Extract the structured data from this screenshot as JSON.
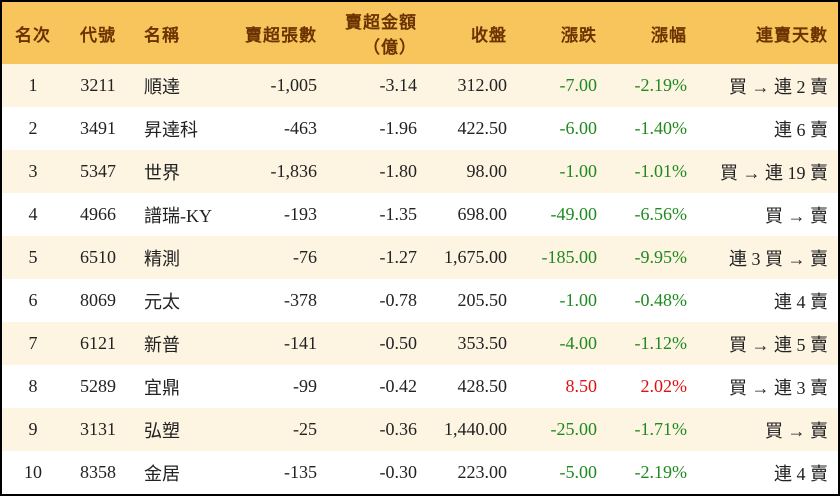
{
  "table": {
    "header": [
      "名次",
      "代號",
      "名稱",
      "賣超張數",
      [
        "賣超金額",
        "（億）"
      ],
      "收盤",
      "漲跌",
      "漲幅",
      "連賣天數"
    ],
    "rows": [
      [
        "1",
        "3211",
        "順達",
        "-1,005",
        "-3.14",
        "312.00",
        "-7.00",
        "-2.19%",
        "買 → 連 2 賣"
      ],
      [
        "2",
        "3491",
        "昇達科",
        "-463",
        "-1.96",
        "422.50",
        "-6.00",
        "-1.40%",
        "連 6 賣"
      ],
      [
        "3",
        "5347",
        "世界",
        "-1,836",
        "-1.80",
        "98.00",
        "-1.00",
        "-1.01%",
        "買 → 連 19 賣"
      ],
      [
        "4",
        "4966",
        "譜瑞-KY",
        "-193",
        "-1.35",
        "698.00",
        "-49.00",
        "-6.56%",
        "買 → 賣"
      ],
      [
        "5",
        "6510",
        "精測",
        "-76",
        "-1.27",
        "1,675.00",
        "-185.00",
        "-9.95%",
        "連 3 買 → 賣"
      ],
      [
        "6",
        "8069",
        "元太",
        "-378",
        "-0.78",
        "205.50",
        "-1.00",
        "-0.48%",
        "連 4 賣"
      ],
      [
        "7",
        "6121",
        "新普",
        "-141",
        "-0.50",
        "353.50",
        "-4.00",
        "-1.12%",
        "買 → 連 5 賣"
      ],
      [
        "8",
        "5289",
        "宜鼎",
        "-99",
        "-0.42",
        "428.50",
        "8.50",
        "2.02%",
        "買 → 連 3 賣"
      ],
      [
        "9",
        "3131",
        "弘塑",
        "-25",
        "-0.36",
        "1,440.00",
        "-25.00",
        "-1.71%",
        "買 → 賣"
      ],
      [
        "10",
        "8358",
        "金居",
        "-135",
        "-0.30",
        "223.00",
        "-5.00",
        "-2.19%",
        "連 4 賣"
      ]
    ]
  }
}
